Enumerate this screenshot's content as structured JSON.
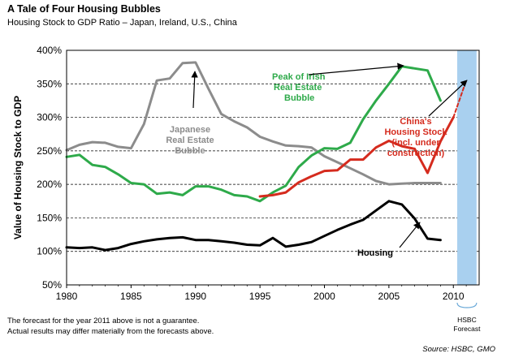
{
  "header": {
    "title": "A Tale of Four Housing Bubbles",
    "subtitle": "Housing Stock to GDP Ratio – Japan, Ireland, U.S., China"
  },
  "footer": {
    "disclaimer_line1": "The forecast for the year 2011 above is not a guarantee.",
    "disclaimer_line2": "Actual results may differ materially from the forecasts above.",
    "source": "Source: HSBC, GMO"
  },
  "chart_data": {
    "type": "line",
    "title": "A Tale of Four Housing Bubbles",
    "subtitle": "Housing Stock to GDP Ratio – Japan, Ireland, U.S., China",
    "ylabel": "Value of Housing Stock to GDP",
    "xlabel": "",
    "xlim": [
      1980,
      2012
    ],
    "ylim": [
      50,
      400
    ],
    "x_ticks": [
      1980,
      1985,
      1990,
      1995,
      2000,
      2005,
      2010
    ],
    "y_ticks": [
      50,
      100,
      150,
      200,
      250,
      300,
      350,
      400
    ],
    "y_tick_labels": [
      "50%",
      "100%",
      "150%",
      "200%",
      "250%",
      "300%",
      "350%",
      "400%"
    ],
    "grid": "horizontal dashed",
    "forecast_region": {
      "from": 2010.3,
      "to": 2011.8,
      "color": "#a9d0ef",
      "label_line1": "HSBC",
      "label_line2": "Forecast"
    },
    "series": [
      {
        "name": "Japanese Real Estate Bubble",
        "color": "#8c8c8c",
        "x": [
          1980,
          1981,
          1982,
          1983,
          1984,
          1985,
          1986,
          1987,
          1988,
          1989,
          1990,
          1991,
          1992,
          1993,
          1994,
          1995,
          1996,
          1997,
          1998,
          1999,
          2000,
          2001,
          2002,
          2003,
          2004,
          2005,
          2006,
          2007,
          2008,
          2009
        ],
        "y": [
          251,
          259,
          263,
          262,
          256,
          254,
          290,
          355,
          358,
          381,
          382,
          343,
          305,
          294,
          285,
          271,
          264,
          258,
          257,
          255,
          242,
          233,
          224,
          215,
          205,
          200,
          201,
          202,
          202,
          202
        ]
      },
      {
        "name": "Peak of Irish Real Estate Bubble",
        "color": "#2eaa4a",
        "x": [
          1980,
          1981,
          1982,
          1983,
          1984,
          1985,
          1986,
          1987,
          1988,
          1989,
          1990,
          1991,
          1992,
          1993,
          1994,
          1995,
          1996,
          1997,
          1998,
          1999,
          2000,
          2001,
          2002,
          2003,
          2004,
          2005,
          2006,
          2007,
          2008,
          2009
        ],
        "y": [
          241,
          244,
          229,
          226,
          215,
          202,
          200,
          186,
          188,
          184,
          197,
          197,
          192,
          184,
          182,
          175,
          188,
          198,
          226,
          243,
          254,
          253,
          262,
          297,
          325,
          350,
          376,
          373,
          370,
          325
        ]
      },
      {
        "name": "China's Housing Stock (incl. under construction)",
        "color": "#d52b1e",
        "x": [
          1995,
          1996,
          1997,
          1998,
          1999,
          2000,
          2001,
          2002,
          2003,
          2004,
          2005,
          2006,
          2007,
          2008,
          2009,
          2010
        ],
        "y": [
          182,
          184,
          188,
          203,
          212,
          220,
          221,
          237,
          237,
          255,
          265,
          257,
          253,
          217,
          264,
          300
        ]
      },
      {
        "name": "China forecast",
        "color": "#d52b1e",
        "dashed": true,
        "x": [
          2010,
          2011
        ],
        "y": [
          300,
          355
        ]
      },
      {
        "name": "Housing",
        "color": "#000000",
        "x": [
          1980,
          1981,
          1982,
          1983,
          1984,
          1985,
          1986,
          1987,
          1988,
          1989,
          1990,
          1991,
          1992,
          1993,
          1994,
          1995,
          1996,
          1997,
          1998,
          1999,
          2000,
          2001,
          2002,
          2003,
          2004,
          2005,
          2006,
          2007,
          2008,
          2009
        ],
        "y": [
          106,
          105,
          106,
          102,
          105,
          111,
          115,
          118,
          120,
          121,
          117,
          117,
          115,
          113,
          110,
          109,
          120,
          107,
          110,
          114,
          123,
          132,
          140,
          147,
          161,
          175,
          170,
          149,
          119,
          117
        ]
      }
    ],
    "annotations": {
      "japan_line1": "Japanese",
      "japan_line2": "Real Estate",
      "japan_line3": "Bubble",
      "ireland_line1": "Peak of Irish",
      "ireland_line2": "Real Estate",
      "ireland_line3": "Bubble",
      "china_line1": "China's",
      "china_line2": "Housing Stock",
      "china_line3": "(incl. under",
      "china_line4": "construction)",
      "us_label": "Housing"
    }
  }
}
